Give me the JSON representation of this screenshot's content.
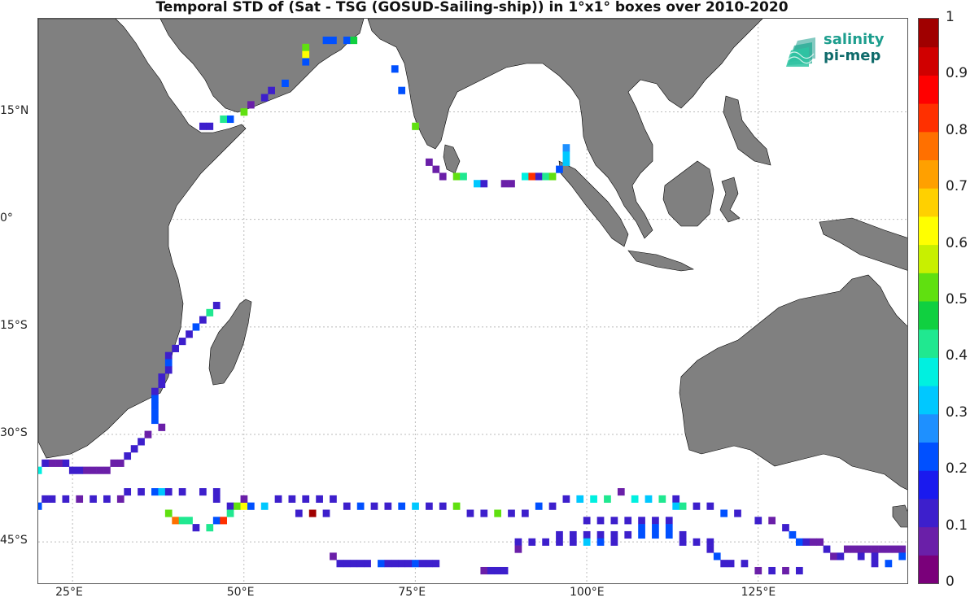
{
  "title": "Temporal STD of (Sat - TSG (GOSUD-Sailing-ship)) in 1°x1° boxes over 2010-2020",
  "logo": {
    "line1": "salinity",
    "line2": "pi-mep"
  },
  "axes": {
    "x_ticks": [
      {
        "value": 25,
        "label": "25°E"
      },
      {
        "value": 50,
        "label": "50°E"
      },
      {
        "value": 75,
        "label": "75°E"
      },
      {
        "value": 100,
        "label": "100°E"
      },
      {
        "value": 125,
        "label": "125°E"
      }
    ],
    "y_ticks": [
      {
        "value": 15,
        "label": "15°N"
      },
      {
        "value": 0,
        "label": "0°"
      },
      {
        "value": -15,
        "label": "15°S"
      },
      {
        "value": -30,
        "label": "30°S"
      },
      {
        "value": -45,
        "label": "45°S"
      }
    ],
    "lon_range": [
      20,
      147
    ],
    "lat_range": [
      -51,
      28
    ]
  },
  "colorbar": {
    "range": [
      0,
      1
    ],
    "ticks": [
      "0",
      "0.1",
      "0.2",
      "0.3",
      "0.4",
      "0.5",
      "0.6",
      "0.7",
      "0.8",
      "0.9",
      "1"
    ],
    "colors": [
      "#7a007a",
      "#6a1fa8",
      "#3d1fcc",
      "#1a1aee",
      "#0050ff",
      "#1e90ff",
      "#00c8ff",
      "#00f0e0",
      "#20e890",
      "#10d040",
      "#60e010",
      "#c8f000",
      "#ffff00",
      "#ffd000",
      "#ffa000",
      "#ff7000",
      "#ff3000",
      "#ff0000",
      "#d00000",
      "#a00000"
    ]
  },
  "land_color": "#808080",
  "chart_data": {
    "type": "heatmap",
    "title": "Temporal STD of (Sat - TSG (GOSUD-Sailing-ship)) in 1°x1° boxes over 2010-2020",
    "cells": [
      {
        "lon": 62,
        "lat": 25,
        "v": 0.2
      },
      {
        "lon": 63,
        "lat": 25,
        "v": 0.2
      },
      {
        "lon": 65,
        "lat": 25,
        "v": 0.2
      },
      {
        "lon": 66,
        "lat": 25,
        "v": 0.45
      },
      {
        "lon": 59,
        "lat": 24,
        "v": 0.5
      },
      {
        "lon": 59,
        "lat": 23,
        "v": 0.6
      },
      {
        "lon": 59,
        "lat": 22,
        "v": 0.2
      },
      {
        "lon": 56,
        "lat": 19,
        "v": 0.2
      },
      {
        "lon": 54,
        "lat": 18,
        "v": 0.1
      },
      {
        "lon": 53,
        "lat": 17,
        "v": 0.1
      },
      {
        "lon": 51,
        "lat": 16,
        "v": 0.05
      },
      {
        "lon": 50,
        "lat": 15,
        "v": 0.5
      },
      {
        "lon": 48,
        "lat": 14,
        "v": 0.2
      },
      {
        "lon": 47,
        "lat": 14,
        "v": 0.4
      },
      {
        "lon": 44,
        "lat": 13,
        "v": 0.1
      },
      {
        "lon": 45,
        "lat": 13,
        "v": 0.1
      },
      {
        "lon": 72,
        "lat": 21,
        "v": 0.2
      },
      {
        "lon": 73,
        "lat": 18,
        "v": 0.2
      },
      {
        "lon": 75,
        "lat": 13,
        "v": 0.5
      },
      {
        "lon": 77,
        "lat": 8,
        "v": 0.05
      },
      {
        "lon": 78,
        "lat": 7,
        "v": 0.05
      },
      {
        "lon": 79,
        "lat": 6,
        "v": 0.05
      },
      {
        "lon": 81,
        "lat": 6,
        "v": 0.5
      },
      {
        "lon": 82,
        "lat": 6,
        "v": 0.4
      },
      {
        "lon": 84,
        "lat": 5,
        "v": 0.3
      },
      {
        "lon": 85,
        "lat": 5,
        "v": 0.1
      },
      {
        "lon": 88,
        "lat": 5,
        "v": 0.05
      },
      {
        "lon": 89,
        "lat": 5,
        "v": 0.05
      },
      {
        "lon": 91,
        "lat": 6,
        "v": 0.35
      },
      {
        "lon": 92,
        "lat": 6,
        "v": 0.8
      },
      {
        "lon": 93,
        "lat": 6,
        "v": 0.1
      },
      {
        "lon": 94,
        "lat": 6,
        "v": 0.4
      },
      {
        "lon": 95,
        "lat": 6,
        "v": 0.5
      },
      {
        "lon": 96,
        "lat": 7,
        "v": 0.2
      },
      {
        "lon": 97,
        "lat": 8,
        "v": 0.3
      },
      {
        "lon": 97,
        "lat": 9,
        "v": 0.3
      },
      {
        "lon": 97,
        "lat": 10,
        "v": 0.25
      },
      {
        "lon": 46,
        "lat": -12,
        "v": 0.1
      },
      {
        "lon": 45,
        "lat": -13,
        "v": 0.4
      },
      {
        "lon": 44,
        "lat": -14,
        "v": 0.1
      },
      {
        "lon": 43,
        "lat": -15,
        "v": 0.2
      },
      {
        "lon": 42,
        "lat": -16,
        "v": 0.1
      },
      {
        "lon": 41,
        "lat": -17,
        "v": 0.1
      },
      {
        "lon": 40,
        "lat": -18,
        "v": 0.1
      },
      {
        "lon": 39,
        "lat": -19,
        "v": 0.1
      },
      {
        "lon": 39,
        "lat": -20,
        "v": 0.2
      },
      {
        "lon": 39,
        "lat": -21,
        "v": 0.1
      },
      {
        "lon": 38,
        "lat": -22,
        "v": 0.1
      },
      {
        "lon": 38,
        "lat": -23,
        "v": 0.1
      },
      {
        "lon": 37,
        "lat": -24,
        "v": 0.1
      },
      {
        "lon": 37,
        "lat": -25,
        "v": 0.2
      },
      {
        "lon": 37,
        "lat": -26,
        "v": 0.2
      },
      {
        "lon": 37,
        "lat": -27,
        "v": 0.2
      },
      {
        "lon": 37,
        "lat": -28,
        "v": 0.2
      },
      {
        "lon": 38,
        "lat": -29,
        "v": 0.05
      },
      {
        "lon": 36,
        "lat": -30,
        "v": 0.05
      },
      {
        "lon": 35,
        "lat": -31,
        "v": 0.1
      },
      {
        "lon": 34,
        "lat": -32,
        "v": 0.1
      },
      {
        "lon": 33,
        "lat": -33,
        "v": 0.1
      },
      {
        "lon": 32,
        "lat": -34,
        "v": 0.05
      },
      {
        "lon": 31,
        "lat": -34,
        "v": 0.05
      },
      {
        "lon": 30,
        "lat": -35,
        "v": 0.05
      },
      {
        "lon": 29,
        "lat": -35,
        "v": 0.05
      },
      {
        "lon": 28,
        "lat": -35,
        "v": 0.05
      },
      {
        "lon": 27,
        "lat": -35,
        "v": 0.05
      },
      {
        "lon": 26,
        "lat": -35,
        "v": 0.1
      },
      {
        "lon": 25,
        "lat": -35,
        "v": 0.1
      },
      {
        "lon": 24,
        "lat": -34,
        "v": 0.1
      },
      {
        "lon": 23,
        "lat": -34,
        "v": 0.05
      },
      {
        "lon": 22,
        "lat": -34,
        "v": 0.05
      },
      {
        "lon": 21,
        "lat": -34,
        "v": 0.1
      },
      {
        "lon": 20,
        "lat": -35,
        "v": 0.35
      },
      {
        "lon": 20,
        "lat": -40,
        "v": 0.2
      },
      {
        "lon": 21,
        "lat": -39,
        "v": 0.1
      },
      {
        "lon": 22,
        "lat": -39,
        "v": 0.1
      },
      {
        "lon": 24,
        "lat": -39,
        "v": 0.1
      },
      {
        "lon": 26,
        "lat": -39,
        "v": 0.05
      },
      {
        "lon": 28,
        "lat": -39,
        "v": 0.1
      },
      {
        "lon": 30,
        "lat": -39,
        "v": 0.1
      },
      {
        "lon": 32,
        "lat": -39,
        "v": 0.05
      },
      {
        "lon": 33,
        "lat": -38,
        "v": 0.1
      },
      {
        "lon": 35,
        "lat": -38,
        "v": 0.1
      },
      {
        "lon": 37,
        "lat": -38,
        "v": 0.2
      },
      {
        "lon": 38,
        "lat": -38,
        "v": 0.3
      },
      {
        "lon": 39,
        "lat": -38,
        "v": 0.1
      },
      {
        "lon": 41,
        "lat": -38,
        "v": 0.1
      },
      {
        "lon": 44,
        "lat": -38,
        "v": 0.1
      },
      {
        "lon": 46,
        "lat": -38,
        "v": 0.1
      },
      {
        "lon": 46,
        "lat": -39,
        "v": 0.1
      },
      {
        "lon": 48,
        "lat": -40,
        "v": 0.1
      },
      {
        "lon": 49,
        "lat": -40,
        "v": 0.5
      },
      {
        "lon": 50,
        "lat": -40,
        "v": 0.6
      },
      {
        "lon": 50,
        "lat": -39,
        "v": 0.05
      },
      {
        "lon": 51,
        "lat": -40,
        "v": 0.2
      },
      {
        "lon": 53,
        "lat": -40,
        "v": 0.3
      },
      {
        "lon": 55,
        "lat": -39,
        "v": 0.1
      },
      {
        "lon": 57,
        "lat": -39,
        "v": 0.1
      },
      {
        "lon": 59,
        "lat": -39,
        "v": 0.1
      },
      {
        "lon": 61,
        "lat": -39,
        "v": 0.1
      },
      {
        "lon": 63,
        "lat": -39,
        "v": 0.1
      },
      {
        "lon": 65,
        "lat": -40,
        "v": 0.1
      },
      {
        "lon": 67,
        "lat": -40,
        "v": 0.2
      },
      {
        "lon": 69,
        "lat": -40,
        "v": 0.1
      },
      {
        "lon": 71,
        "lat": -40,
        "v": 0.1
      },
      {
        "lon": 73,
        "lat": -40,
        "v": 0.2
      },
      {
        "lon": 75,
        "lat": -40,
        "v": 0.3
      },
      {
        "lon": 77,
        "lat": -40,
        "v": 0.1
      },
      {
        "lon": 79,
        "lat": -40,
        "v": 0.1
      },
      {
        "lon": 81,
        "lat": -40,
        "v": 0.5
      },
      {
        "lon": 83,
        "lat": -41,
        "v": 0.1
      },
      {
        "lon": 85,
        "lat": -41,
        "v": 0.1
      },
      {
        "lon": 87,
        "lat": -41,
        "v": 0.5
      },
      {
        "lon": 89,
        "lat": -41,
        "v": 0.1
      },
      {
        "lon": 91,
        "lat": -41,
        "v": 0.1
      },
      {
        "lon": 93,
        "lat": -40,
        "v": 0.2
      },
      {
        "lon": 95,
        "lat": -40,
        "v": 0.1
      },
      {
        "lon": 97,
        "lat": -39,
        "v": 0.1
      },
      {
        "lon": 99,
        "lat": -39,
        "v": 0.3
      },
      {
        "lon": 101,
        "lat": -39,
        "v": 0.35
      },
      {
        "lon": 103,
        "lat": -39,
        "v": 0.4
      },
      {
        "lon": 105,
        "lat": -38,
        "v": 0.05
      },
      {
        "lon": 107,
        "lat": -39,
        "v": 0.35
      },
      {
        "lon": 109,
        "lat": -39,
        "v": 0.3
      },
      {
        "lon": 111,
        "lat": -39,
        "v": 0.4
      },
      {
        "lon": 113,
        "lat": -39,
        "v": 0.1
      },
      {
        "lon": 113,
        "lat": -40,
        "v": 0.3
      },
      {
        "lon": 114,
        "lat": -40,
        "v": 0.4
      },
      {
        "lon": 116,
        "lat": -40,
        "v": 0.1
      },
      {
        "lon": 118,
        "lat": -40,
        "v": 0.1
      },
      {
        "lon": 120,
        "lat": -41,
        "v": 0.2
      },
      {
        "lon": 122,
        "lat": -41,
        "v": 0.1
      },
      {
        "lon": 39,
        "lat": -41,
        "v": 0.5
      },
      {
        "lon": 40,
        "lat": -42,
        "v": 0.75
      },
      {
        "lon": 41,
        "lat": -42,
        "v": 0.4
      },
      {
        "lon": 42,
        "lat": -42,
        "v": 0.4
      },
      {
        "lon": 43,
        "lat": -43,
        "v": 0.1
      },
      {
        "lon": 45,
        "lat": -43,
        "v": 0.4
      },
      {
        "lon": 46,
        "lat": -42,
        "v": 0.2
      },
      {
        "lon": 47,
        "lat": -42,
        "v": 0.8
      },
      {
        "lon": 48,
        "lat": -41,
        "v": 0.4
      },
      {
        "lon": 60,
        "lat": -41,
        "v": 0.95
      },
      {
        "lon": 58,
        "lat": -41,
        "v": 0.1
      },
      {
        "lon": 62,
        "lat": -41,
        "v": 0.1
      },
      {
        "lon": 100,
        "lat": -42,
        "v": 0.1
      },
      {
        "lon": 102,
        "lat": -42,
        "v": 0.1
      },
      {
        "lon": 104,
        "lat": -42,
        "v": 0.1
      },
      {
        "lon": 106,
        "lat": -42,
        "v": 0.1
      },
      {
        "lon": 108,
        "lat": -42,
        "v": 0.1
      },
      {
        "lon": 110,
        "lat": -42,
        "v": 0.1
      },
      {
        "lon": 112,
        "lat": -42,
        "v": 0.1
      },
      {
        "lon": 108,
        "lat": -43,
        "v": 0.2
      },
      {
        "lon": 110,
        "lat": -43,
        "v": 0.2
      },
      {
        "lon": 112,
        "lat": -43,
        "v": 0.2
      },
      {
        "lon": 96,
        "lat": -44,
        "v": 0.1
      },
      {
        "lon": 98,
        "lat": -44,
        "v": 0.1
      },
      {
        "lon": 100,
        "lat": -44,
        "v": 0.1
      },
      {
        "lon": 102,
        "lat": -44,
        "v": 0.1
      },
      {
        "lon": 104,
        "lat": -44,
        "v": 0.1
      },
      {
        "lon": 106,
        "lat": -44,
        "v": 0.1
      },
      {
        "lon": 108,
        "lat": -44,
        "v": 0.2
      },
      {
        "lon": 110,
        "lat": -44,
        "v": 0.2
      },
      {
        "lon": 112,
        "lat": -44,
        "v": 0.2
      },
      {
        "lon": 114,
        "lat": -44,
        "v": 0.1
      },
      {
        "lon": 90,
        "lat": -45,
        "v": 0.1
      },
      {
        "lon": 92,
        "lat": -45,
        "v": 0.1
      },
      {
        "lon": 94,
        "lat": -45,
        "v": 0.1
      },
      {
        "lon": 96,
        "lat": -45,
        "v": 0.1
      },
      {
        "lon": 98,
        "lat": -45,
        "v": 0.1
      },
      {
        "lon": 100,
        "lat": -45,
        "v": 0.3
      },
      {
        "lon": 102,
        "lat": -45,
        "v": 0.2
      },
      {
        "lon": 104,
        "lat": -45,
        "v": 0.1
      },
      {
        "lon": 114,
        "lat": -45,
        "v": 0.1
      },
      {
        "lon": 116,
        "lat": -45,
        "v": 0.1
      },
      {
        "lon": 118,
        "lat": -45,
        "v": 0.1
      },
      {
        "lon": 90,
        "lat": -46,
        "v": 0.05
      },
      {
        "lon": 118,
        "lat": -46,
        "v": 0.1
      },
      {
        "lon": 119,
        "lat": -47,
        "v": 0.2
      },
      {
        "lon": 120,
        "lat": -48,
        "v": 0.1
      },
      {
        "lon": 121,
        "lat": -48,
        "v": 0.1
      },
      {
        "lon": 123,
        "lat": -48,
        "v": 0.1
      },
      {
        "lon": 125,
        "lat": -49,
        "v": 0.05
      },
      {
        "lon": 127,
        "lat": -49,
        "v": 0.1
      },
      {
        "lon": 129,
        "lat": -49,
        "v": 0.05
      },
      {
        "lon": 131,
        "lat": -49,
        "v": 0.1
      },
      {
        "lon": 125,
        "lat": -42,
        "v": 0.1
      },
      {
        "lon": 127,
        "lat": -42,
        "v": 0.05
      },
      {
        "lon": 129,
        "lat": -43,
        "v": 0.1
      },
      {
        "lon": 130,
        "lat": -44,
        "v": 0.2
      },
      {
        "lon": 131,
        "lat": -45,
        "v": 0.2
      },
      {
        "lon": 132,
        "lat": -45,
        "v": 0.1
      },
      {
        "lon": 133,
        "lat": -45,
        "v": 0.05
      },
      {
        "lon": 134,
        "lat": -45,
        "v": 0.05
      },
      {
        "lon": 135,
        "lat": -46,
        "v": 0.1
      },
      {
        "lon": 136,
        "lat": -47,
        "v": 0.05
      },
      {
        "lon": 137,
        "lat": -47,
        "v": 0.1
      },
      {
        "lon": 138,
        "lat": -46,
        "v": 0.05
      },
      {
        "lon": 139,
        "lat": -46,
        "v": 0.05
      },
      {
        "lon": 140,
        "lat": -46,
        "v": 0.05
      },
      {
        "lon": 141,
        "lat": -46,
        "v": 0.05
      },
      {
        "lon": 142,
        "lat": -46,
        "v": 0.05
      },
      {
        "lon": 143,
        "lat": -46,
        "v": 0.05
      },
      {
        "lon": 144,
        "lat": -46,
        "v": 0.05
      },
      {
        "lon": 145,
        "lat": -46,
        "v": 0.05
      },
      {
        "lon": 146,
        "lat": -46,
        "v": 0.05
      },
      {
        "lon": 140,
        "lat": -47,
        "v": 0.1
      },
      {
        "lon": 142,
        "lat": -47,
        "v": 0.1
      },
      {
        "lon": 144,
        "lat": -48,
        "v": 0.2
      },
      {
        "lon": 146,
        "lat": -47,
        "v": 0.2
      },
      {
        "lon": 142,
        "lat": -48,
        "v": 0.1
      },
      {
        "lon": 63,
        "lat": -47,
        "v": 0.05
      },
      {
        "lon": 64,
        "lat": -48,
        "v": 0.1
      },
      {
        "lon": 65,
        "lat": -48,
        "v": 0.1
      },
      {
        "lon": 66,
        "lat": -48,
        "v": 0.1
      },
      {
        "lon": 67,
        "lat": -48,
        "v": 0.1
      },
      {
        "lon": 68,
        "lat": -48,
        "v": 0.1
      },
      {
        "lon": 70,
        "lat": -48,
        "v": 0.2
      },
      {
        "lon": 71,
        "lat": -48,
        "v": 0.1
      },
      {
        "lon": 72,
        "lat": -48,
        "v": 0.1
      },
      {
        "lon": 73,
        "lat": -48,
        "v": 0.1
      },
      {
        "lon": 74,
        "lat": -48,
        "v": 0.1
      },
      {
        "lon": 75,
        "lat": -48,
        "v": 0.2
      },
      {
        "lon": 76,
        "lat": -48,
        "v": 0.1
      },
      {
        "lon": 77,
        "lat": -48,
        "v": 0.1
      },
      {
        "lon": 78,
        "lat": -48,
        "v": 0.1
      },
      {
        "lon": 85,
        "lat": -49,
        "v": 0.05
      },
      {
        "lon": 86,
        "lat": -49,
        "v": 0.1
      },
      {
        "lon": 87,
        "lat": -49,
        "v": 0.1
      },
      {
        "lon": 88,
        "lat": -49,
        "v": 0.1
      }
    ]
  }
}
